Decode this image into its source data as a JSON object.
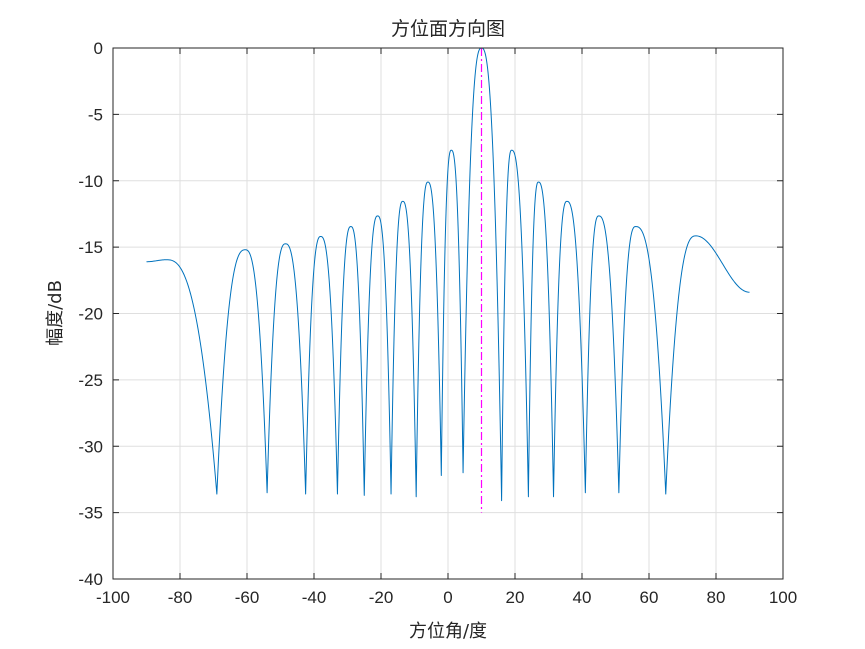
{
  "chart_data": {
    "type": "line",
    "title": "方位面方向图",
    "xlabel": "方位角/度",
    "ylabel": "幅度/dB",
    "xlim": [
      -100,
      100
    ],
    "ylim": [
      -40,
      0
    ],
    "x_ticks": [
      "-100",
      "-80",
      "-60",
      "-40",
      "-20",
      "0",
      "20",
      "40",
      "60",
      "80",
      "100"
    ],
    "y_ticks": [
      "0",
      "-5",
      "-10",
      "-15",
      "-20",
      "-25",
      "-30",
      "-35",
      "-40"
    ],
    "grid": true,
    "series": [
      {
        "color": "#0072BD",
        "peaks": [
          [
            -90,
            -16.1
          ],
          [
            -84,
            -15.95
          ],
          [
            -60.5,
            -15.2
          ],
          [
            -48.5,
            -14.75
          ],
          [
            -38,
            -14.2
          ],
          [
            -29,
            -13.45
          ],
          [
            -21,
            -12.65
          ],
          [
            -13.5,
            -11.55
          ],
          [
            -6,
            -10.1
          ],
          [
            1,
            -7.7
          ],
          [
            10,
            0
          ],
          [
            19,
            -7.7
          ],
          [
            27,
            -10.1
          ],
          [
            35.5,
            -11.55
          ],
          [
            45,
            -12.65
          ],
          [
            56,
            -13.45
          ],
          [
            74,
            -14.15
          ],
          [
            90,
            -18.4
          ]
        ],
        "nulls": [
          [
            -69,
            -33.6
          ],
          [
            -54,
            -33.5
          ],
          [
            -42.5,
            -33.6
          ],
          [
            -33,
            -33.6
          ],
          [
            -25,
            -33.7
          ],
          [
            -17,
            -33.6
          ],
          [
            -9.5,
            -33.8
          ],
          [
            -2,
            -32.2
          ],
          [
            4.5,
            -32.0
          ],
          [
            16,
            -34.1
          ],
          [
            24,
            -33.8
          ],
          [
            31.5,
            -33.8
          ],
          [
            41,
            -33.5
          ],
          [
            51,
            -33.5
          ],
          [
            65,
            -33.6
          ]
        ]
      }
    ],
    "reference_line": {
      "x": 10,
      "y_range": [
        -35,
        0
      ],
      "color": "#FF00FF",
      "style": "dash-dot"
    }
  }
}
